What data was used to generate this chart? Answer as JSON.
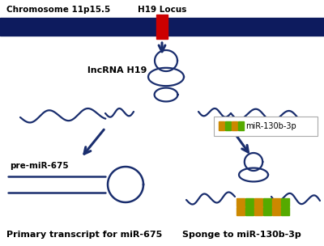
{
  "bg_color": "#ffffff",
  "chrom_color": "#0d1b5e",
  "locus_color": "#cc0000",
  "arrow_color": "#1a2e6e",
  "rna_color": "#1a2e6e",
  "title_top_left": "Chromosome 11p15.5",
  "title_top_right": "H19 Locus",
  "label_lncrna": "lncRNA H19",
  "label_pre_mir": "pre-miR-675",
  "label_bottom_left": "Primary transcript for miR-675",
  "label_bottom_right": "Sponge to miR-130b-3p",
  "label_mir130b": "miR-130b-3p",
  "mir_color_gold": "#cc8800",
  "mir_color_green": "#55aa00",
  "legend_border_color": "#aaaaaa"
}
